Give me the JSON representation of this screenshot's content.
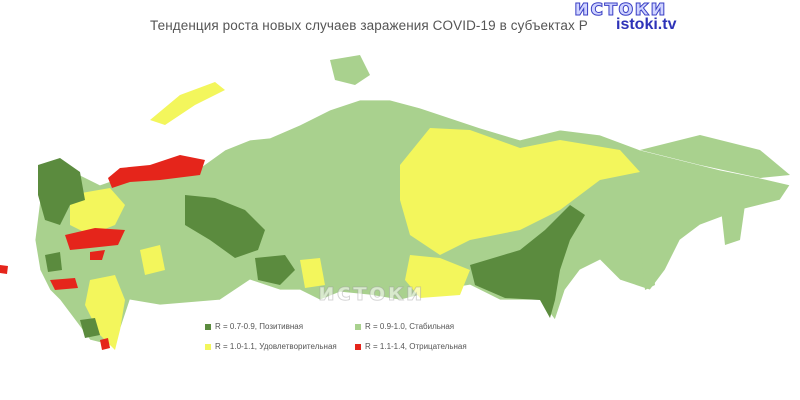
{
  "title": "Тенденция роста новых случаев заражения COVID-19 в субъектах Р",
  "logo": {
    "text": "истоки",
    "site": "istoki.tv",
    "watermark": "истоки"
  },
  "colors": {
    "positive": "#5b8b3e",
    "stable": "#a9d18e",
    "satisfactory": "#f3f65c",
    "negative": "#e5251b",
    "logo": "#2e33b8"
  },
  "legend": [
    {
      "label": "R = 0.7-0.9, Позитивная",
      "color": "#5b8b3e"
    },
    {
      "label": "R = 0.9-1.0, Стабильная",
      "color": "#a9d18e"
    },
    {
      "label": "R = 1.0-1.1, Удовлетворительная",
      "color": "#f3f65c"
    },
    {
      "label": "R = 1.1-1.4, Отрицательная",
      "color": "#e5251b"
    }
  ]
}
